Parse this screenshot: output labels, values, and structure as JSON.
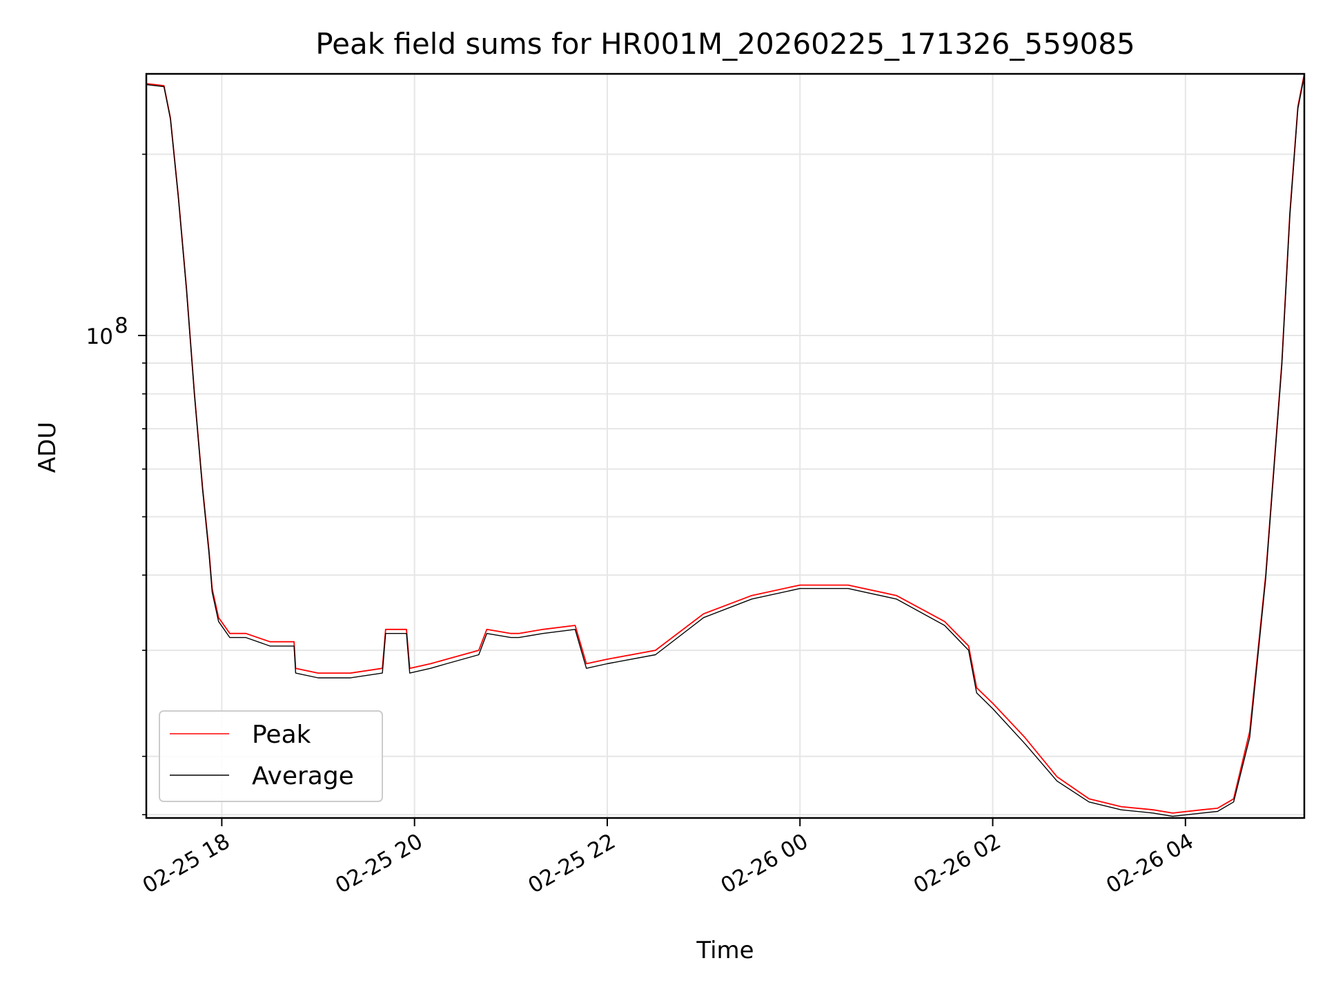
{
  "chart_data": {
    "type": "line",
    "title": "Peak field sums for HR001M_20260225_171326_559085",
    "xlabel": "Time",
    "ylabel": "ADU",
    "yscale": "log",
    "xlim": [
      "2026-02-25T17:13",
      "2026-02-26T05:14"
    ],
    "ylim": [
      15800000,
      272000000
    ],
    "grid": true,
    "legend_position": "lower-left",
    "x_ticks": [
      {
        "value": "2026-02-25T18:00",
        "label": "02-25 18"
      },
      {
        "value": "2026-02-25T20:00",
        "label": "02-25 20"
      },
      {
        "value": "2026-02-25T22:00",
        "label": "02-25 22"
      },
      {
        "value": "2026-02-26T00:00",
        "label": "02-26 00"
      },
      {
        "value": "2026-02-26T02:00",
        "label": "02-26 02"
      },
      {
        "value": "2026-02-26T04:00",
        "label": "02-26 04"
      }
    ],
    "y_ticks": [
      {
        "value": 100000000,
        "label_base": "10",
        "label_exp": "8"
      }
    ],
    "y_minor_ticks": [
      16000000,
      20000000,
      30000000,
      40000000,
      50000000,
      60000000,
      70000000,
      80000000,
      90000000,
      200000000
    ],
    "series": [
      {
        "name": "Peak",
        "color": "#ff0000",
        "x": [
          "2026-02-25T17:13",
          "2026-02-25T17:24",
          "2026-02-25T17:28",
          "2026-02-25T17:33",
          "2026-02-25T17:38",
          "2026-02-25T17:43",
          "2026-02-25T17:48",
          "2026-02-25T17:52",
          "2026-02-25T17:54",
          "2026-02-25T17:58",
          "2026-02-25T18:05",
          "2026-02-25T18:15",
          "2026-02-25T18:30",
          "2026-02-25T18:45",
          "2026-02-25T18:46",
          "2026-02-25T19:00",
          "2026-02-25T19:20",
          "2026-02-25T19:40",
          "2026-02-25T19:42",
          "2026-02-25T19:55",
          "2026-02-25T19:57",
          "2026-02-25T20:10",
          "2026-02-25T20:20",
          "2026-02-25T20:40",
          "2026-02-25T20:45",
          "2026-02-25T21:00",
          "2026-02-25T21:05",
          "2026-02-25T21:20",
          "2026-02-25T21:40",
          "2026-02-25T21:47",
          "2026-02-25T22:00",
          "2026-02-25T22:30",
          "2026-02-25T23:00",
          "2026-02-25T23:30",
          "2026-02-26T00:00",
          "2026-02-26T00:30",
          "2026-02-26T01:00",
          "2026-02-26T01:30",
          "2026-02-26T01:45",
          "2026-02-26T01:50",
          "2026-02-26T02:00",
          "2026-02-26T02:20",
          "2026-02-26T02:40",
          "2026-02-26T03:00",
          "2026-02-26T03:20",
          "2026-02-26T03:40",
          "2026-02-26T03:52",
          "2026-02-26T04:10",
          "2026-02-26T04:20",
          "2026-02-26T04:30",
          "2026-02-26T04:40",
          "2026-02-26T04:50",
          "2026-02-26T05:00",
          "2026-02-26T05:05",
          "2026-02-26T05:10",
          "2026-02-26T05:14"
        ],
        "y": [
          262000000,
          260000000,
          230000000,
          170000000,
          120000000,
          80000000,
          56000000,
          44000000,
          38000000,
          34000000,
          32000000,
          32000000,
          31000000,
          31000000,
          28000000,
          27500000,
          27500000,
          28000000,
          32500000,
          32500000,
          28000000,
          28500000,
          29000000,
          30000000,
          32500000,
          32000000,
          32000000,
          32500000,
          33000000,
          28500000,
          29000000,
          30000000,
          34500000,
          37000000,
          38500000,
          38500000,
          37000000,
          33500000,
          30500000,
          26000000,
          24500000,
          21500000,
          18500000,
          17000000,
          16500000,
          16300000,
          16100000,
          16300000,
          16400000,
          17000000,
          22000000,
          40000000,
          90000000,
          160000000,
          240000000,
          272000000
        ]
      },
      {
        "name": "Average",
        "color": "#000000",
        "x": [
          "2026-02-25T17:13",
          "2026-02-25T17:24",
          "2026-02-25T17:28",
          "2026-02-25T17:33",
          "2026-02-25T17:38",
          "2026-02-25T17:43",
          "2026-02-25T17:48",
          "2026-02-25T17:52",
          "2026-02-25T17:54",
          "2026-02-25T17:58",
          "2026-02-25T18:05",
          "2026-02-25T18:15",
          "2026-02-25T18:30",
          "2026-02-25T18:45",
          "2026-02-25T18:46",
          "2026-02-25T19:00",
          "2026-02-25T19:20",
          "2026-02-25T19:40",
          "2026-02-25T19:42",
          "2026-02-25T19:55",
          "2026-02-25T19:57",
          "2026-02-25T20:10",
          "2026-02-25T20:20",
          "2026-02-25T20:40",
          "2026-02-25T20:45",
          "2026-02-25T21:00",
          "2026-02-25T21:05",
          "2026-02-25T21:20",
          "2026-02-25T21:40",
          "2026-02-25T21:47",
          "2026-02-25T22:00",
          "2026-02-25T22:30",
          "2026-02-25T23:00",
          "2026-02-25T23:30",
          "2026-02-26T00:00",
          "2026-02-26T00:30",
          "2026-02-26T01:00",
          "2026-02-26T01:30",
          "2026-02-26T01:45",
          "2026-02-26T01:50",
          "2026-02-26T02:00",
          "2026-02-26T02:20",
          "2026-02-26T02:40",
          "2026-02-26T03:00",
          "2026-02-26T03:20",
          "2026-02-26T03:40",
          "2026-02-26T03:52",
          "2026-02-26T04:10",
          "2026-02-26T04:20",
          "2026-02-26T04:30",
          "2026-02-26T04:40",
          "2026-02-26T04:50",
          "2026-02-26T05:00",
          "2026-02-26T05:05",
          "2026-02-26T05:10",
          "2026-02-26T05:14"
        ],
        "y": [
          261000000,
          259000000,
          229000000,
          169000000,
          119000000,
          79500000,
          55500000,
          43500000,
          37500000,
          33500000,
          31500000,
          31500000,
          30500000,
          30500000,
          27500000,
          27000000,
          27000000,
          27500000,
          32000000,
          32000000,
          27500000,
          28000000,
          28500000,
          29500000,
          32000000,
          31500000,
          31500000,
          32000000,
          32500000,
          28000000,
          28500000,
          29500000,
          34000000,
          36500000,
          38000000,
          38000000,
          36500000,
          33000000,
          30000000,
          25500000,
          24000000,
          21000000,
          18200000,
          16800000,
          16300000,
          16100000,
          15900000,
          16100000,
          16200000,
          16800000,
          21500000,
          39500000,
          89000000,
          158000000,
          238000000,
          270000000
        ]
      }
    ]
  }
}
